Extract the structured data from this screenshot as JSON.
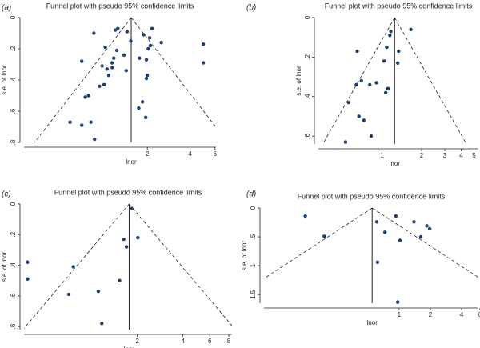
{
  "chart_data": [
    {
      "type": "scatter",
      "label": "(a)",
      "title": "Funnel plot with pseudo 95% confidence limits",
      "x_label": "lnor",
      "y_label": "s.e. of lnor",
      "x_scale": "log",
      "y_inverted": true,
      "color": "#1f3f6e",
      "pooled": 1.54,
      "xlim": [
        0.27,
        6.1
      ],
      "xticks": [
        2,
        4,
        6
      ],
      "ylim": [
        0,
        0.8
      ],
      "yticks": [
        0,
        {
          "value": 0.2,
          "label": ".2"
        },
        {
          "value": 0.4,
          "label": ".4"
        },
        {
          "value": 0.6,
          "label": ".6"
        },
        {
          "value": 0.8,
          "label": ".8"
        }
      ],
      "x": [
        0.84,
        1.19,
        1.24,
        1.44,
        1.88,
        2.16,
        1.53,
        2.08,
        2.03,
        2.51,
        1.76,
        1.37,
        1.22,
        1.01,
        1.16,
        1.13,
        1.13,
        1.04,
        1.07,
        1.42,
        2.1,
        1.97,
        0.69,
        0.96,
        4.96,
        4.96,
        0.99,
        0.92,
        0.73,
        0.77,
        2.0,
        1.97,
        1.74,
        1.85,
        1.95,
        0.57,
        0.8,
        0.69,
        0.85
      ],
      "values": [
        0.1,
        0.08,
        0.07,
        0.09,
        0.11,
        0.07,
        0.15,
        0.13,
        0.2,
        0.16,
        0.26,
        0.24,
        0.21,
        0.19,
        0.26,
        0.29,
        0.32,
        0.33,
        0.37,
        0.34,
        0.18,
        0.27,
        0.28,
        0.31,
        0.17,
        0.29,
        0.43,
        0.44,
        0.51,
        0.5,
        0.37,
        0.39,
        0.58,
        0.54,
        0.64,
        0.67,
        0.67,
        0.69,
        0.78
      ]
    },
    {
      "type": "scatter",
      "label": "(b)",
      "title": "Funnel plot with pseudo 95% confidence limits",
      "x_label": "lnor",
      "y_label": "s.e. of lnor",
      "x_scale": "log",
      "y_inverted": true,
      "color": "#1f3f6e",
      "pooled": 1.25,
      "xlim": [
        0.33,
        5.4
      ],
      "xticks": [
        1,
        2,
        3,
        4,
        5
      ],
      "ylim": [
        0,
        0.64
      ],
      "yticks": [
        0,
        {
          "value": 0.2,
          "label": ".2"
        },
        {
          "value": 0.4,
          "label": ".4"
        },
        {
          "value": 0.6,
          "label": ".6"
        }
      ],
      "x": [
        1.66,
        1.17,
        1.15,
        0.65,
        1.34,
        1.32,
        1.09,
        1.04,
        0.7,
        0.64,
        0.81,
        0.91,
        1.1,
        1.12,
        1.07,
        0.56,
        0.67,
        0.73,
        0.83,
        0.53
      ],
      "values": [
        0.06,
        0.07,
        0.09,
        0.17,
        0.17,
        0.23,
        0.15,
        0.22,
        0.32,
        0.34,
        0.34,
        0.33,
        0.36,
        0.36,
        0.38,
        0.43,
        0.5,
        0.52,
        0.6,
        0.63
      ]
    },
    {
      "type": "scatter",
      "label": "(c)",
      "title": "Funnel plot with pseudo 95% confidence limits",
      "x_label": "lnor",
      "y_label": "s.e. of lnor",
      "x_scale": "log",
      "y_inverted": true,
      "color": "#1f3f6e",
      "pooled": 1.77,
      "xlim": [
        0.36,
        8.4
      ],
      "xticks": [
        2,
        4,
        6,
        8
      ],
      "ylim": [
        0,
        0.82
      ],
      "yticks": [
        0,
        {
          "value": 0.2,
          "label": ".2"
        },
        {
          "value": 0.4,
          "label": ".4"
        },
        {
          "value": 0.6,
          "label": ".6"
        },
        {
          "value": 0.8,
          "label": ".8"
        }
      ],
      "x": [
        0.38,
        0.38,
        0.76,
        0.71,
        1.11,
        1.17,
        1.53,
        1.63,
        1.7,
        1.84,
        2.02
      ],
      "values": [
        0.38,
        0.49,
        0.41,
        0.59,
        0.57,
        0.78,
        0.5,
        0.23,
        0.28,
        0.03,
        0.22
      ]
    },
    {
      "type": "scatter",
      "label": "(d)",
      "title": "Funnel plot with pseudo 95% confidence limits",
      "x_label": "lnor",
      "y_label": "s.e. of lnor",
      "x_scale": "log",
      "y_inverted": true,
      "color": "#1f3f6e",
      "pooled": 0.55,
      "xlim": [
        0.05,
        5.8
      ],
      "xticks": [
        1,
        2,
        4,
        6
      ],
      "ylim": [
        0,
        1.65
      ],
      "yticks": [
        0,
        {
          "value": 0.5,
          "label": ".5"
        },
        1,
        1.5
      ],
      "x": [
        0.125,
        0.19,
        0.61,
        0.73,
        0.93,
        1.02,
        0.62,
        0.97,
        1.39,
        1.62,
        1.85,
        1.97
      ],
      "values": [
        0.14,
        0.49,
        0.24,
        0.42,
        0.14,
        0.56,
        0.94,
        1.63,
        0.24,
        0.5,
        0.31,
        0.36
      ]
    }
  ]
}
